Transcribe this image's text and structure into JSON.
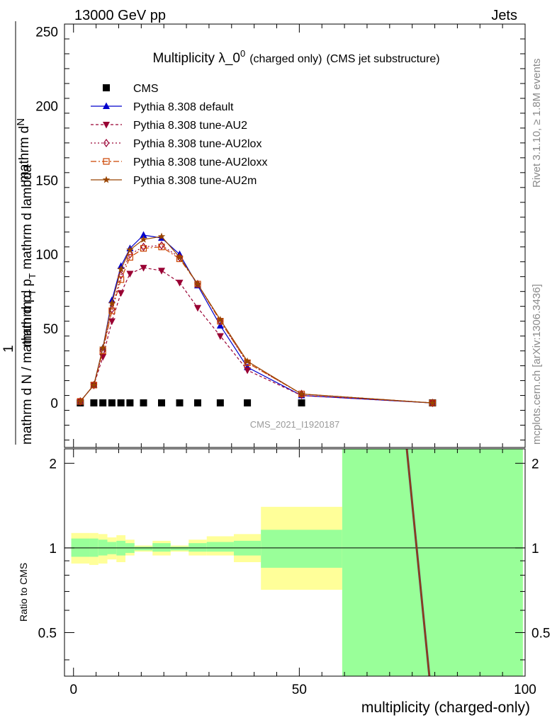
{
  "header": {
    "left": "13000 GeV pp",
    "right": "Jets"
  },
  "chart_title": {
    "main": "Multiplicity λ_0",
    "sup": "0",
    "paren1": "(charged only)",
    "paren2": "(CMS jet substructure)"
  },
  "side_text": {
    "rivet": "Rivet 3.1.10, ≥ 1.8M events",
    "mcplots": "mcplots.cern.ch [arXiv:1306.3436]"
  },
  "watermark": "CMS_2021_I1920187",
  "ylabel_numerator": "mathrm d",
  "ylabel_numerator_N": "N",
  "ylabel_denominator": "mathrm d p",
  "ylabel_denominator_T": "T",
  "ylabel_denominator_tail": " mathrm d lambda",
  "ylabel_prefix_1": "1",
  "ylabel_prefix_den": "mathrm d N / mathrm d p",
  "ylabel_prefix_T": "T",
  "chart_data": {
    "type": "line",
    "xlabel": "multiplicity (charged-only)",
    "xlim": [
      -2,
      100
    ],
    "main": {
      "ylim": [
        -30,
        255
      ],
      "yticks": [
        0,
        50,
        100,
        150,
        200,
        250
      ],
      "series": [
        {
          "name": "CMS",
          "marker": "square",
          "color": "#000000",
          "dash": "",
          "x": [
            1.5,
            4.5,
            6.5,
            8.5,
            10.5,
            12.5,
            15.5,
            19.5,
            23.5,
            27.5,
            32.5,
            38.5,
            50.5,
            79.5
          ],
          "y": [
            0,
            0,
            0,
            0,
            0,
            0,
            0,
            0,
            0,
            0,
            0,
            0,
            0,
            0
          ]
        },
        {
          "name": "Pythia 8.308 default",
          "marker": "triangle-up",
          "color": "#0000cc",
          "dash": "",
          "x": [
            1.5,
            4.5,
            6.5,
            8.5,
            10.5,
            12.5,
            15.5,
            19.5,
            23.5,
            27.5,
            32.5,
            38.5,
            50.5,
            79.5
          ],
          "y": [
            1,
            12,
            37,
            69,
            92,
            104,
            113,
            111,
            100,
            79,
            52,
            24,
            5,
            0
          ]
        },
        {
          "name": "Pythia 8.308 tune-AU2",
          "marker": "triangle-down",
          "color": "#990033",
          "dash": "4,3",
          "x": [
            1.5,
            4.5,
            6.5,
            8.5,
            10.5,
            12.5,
            15.5,
            19.5,
            23.5,
            27.5,
            32.5,
            38.5,
            50.5,
            79.5
          ],
          "y": [
            1,
            12,
            31,
            55,
            74,
            87,
            91,
            89,
            81,
            64,
            45,
            22,
            5,
            0
          ]
        },
        {
          "name": "Pythia 8.308 tune-AU2lox",
          "marker": "diamond-open",
          "color": "#990033",
          "dash": "2,3",
          "x": [
            1.5,
            4.5,
            6.5,
            8.5,
            10.5,
            12.5,
            15.5,
            19.5,
            23.5,
            27.5,
            32.5,
            38.5,
            50.5,
            79.5
          ],
          "y": [
            1,
            12,
            35,
            63,
            86,
            100,
            105,
            106,
            98,
            80,
            55,
            27,
            6,
            0
          ]
        },
        {
          "name": "Pythia 8.308 tune-AU2loxx",
          "marker": "square-open",
          "color": "#cc4400",
          "dash": "8,3,2,3",
          "x": [
            1.5,
            4.5,
            6.5,
            8.5,
            10.5,
            12.5,
            15.5,
            19.5,
            23.5,
            27.5,
            32.5,
            38.5,
            50.5,
            79.5
          ],
          "y": [
            1,
            12,
            35,
            62,
            83,
            98,
            104,
            105,
            97,
            80,
            55,
            27,
            6,
            0
          ]
        },
        {
          "name": "Pythia 8.308 tune-AU2m",
          "marker": "star",
          "color": "#994400",
          "dash": "",
          "x": [
            1.5,
            4.5,
            6.5,
            8.5,
            10.5,
            12.5,
            15.5,
            19.5,
            23.5,
            27.5,
            32.5,
            38.5,
            50.5,
            79.5
          ],
          "y": [
            1,
            12,
            37,
            67,
            90,
            103,
            110,
            112,
            98,
            80,
            56,
            28,
            6,
            0
          ]
        }
      ]
    },
    "ratio": {
      "ylabel": "Ratio to CMS",
      "ylim": [
        0.35,
        2.25
      ],
      "yticks": [
        0.5,
        1,
        2
      ],
      "bands": [
        {
          "x0": -0.5,
          "x1": 3.5,
          "y_lo": 0.88,
          "y_hi": 1.13,
          "g_lo": 0.93,
          "g_hi": 1.08
        },
        {
          "x0": 3.5,
          "x1": 5.5,
          "y_lo": 0.87,
          "y_hi": 1.13,
          "g_lo": 0.93,
          "g_hi": 1.08
        },
        {
          "x0": 5.5,
          "x1": 7.5,
          "y_lo": 0.88,
          "y_hi": 1.12,
          "g_lo": 0.94,
          "g_hi": 1.07
        },
        {
          "x0": 7.5,
          "x1": 9.5,
          "y_lo": 0.91,
          "y_hi": 1.09,
          "g_lo": 0.95,
          "g_hi": 1.05
        },
        {
          "x0": 9.5,
          "x1": 11.5,
          "y_lo": 0.89,
          "y_hi": 1.11,
          "g_lo": 0.94,
          "g_hi": 1.06
        },
        {
          "x0": 11.5,
          "x1": 13.5,
          "y_lo": 0.94,
          "y_hi": 1.07,
          "g_lo": 0.96,
          "g_hi": 1.04
        },
        {
          "x0": 13.5,
          "x1": 17.5,
          "y_lo": 0.97,
          "y_hi": 1.02,
          "g_lo": 0.98,
          "g_hi": 1.01
        },
        {
          "x0": 17.5,
          "x1": 21.5,
          "y_lo": 0.94,
          "y_hi": 1.06,
          "g_lo": 0.97,
          "g_hi": 1.04
        },
        {
          "x0": 21.5,
          "x1": 25.5,
          "y_lo": 0.97,
          "y_hi": 1.02,
          "g_lo": 0.98,
          "g_hi": 1.01
        },
        {
          "x0": 25.5,
          "x1": 29.5,
          "y_lo": 0.94,
          "y_hi": 1.07,
          "g_lo": 0.97,
          "g_hi": 1.04
        },
        {
          "x0": 29.5,
          "x1": 35.5,
          "y_lo": 0.94,
          "y_hi": 1.1,
          "g_lo": 0.97,
          "g_hi": 1.05
        },
        {
          "x0": 35.5,
          "x1": 41.5,
          "y_lo": 0.89,
          "y_hi": 1.12,
          "g_lo": 0.94,
          "g_hi": 1.06
        },
        {
          "x0": 41.5,
          "x1": 59.5,
          "y_lo": 0.71,
          "y_hi": 1.4,
          "g_lo": 0.85,
          "g_hi": 1.16
        },
        {
          "x0": 59.5,
          "x1": 99.5,
          "y_lo": 0.35,
          "y_hi": 2.25,
          "g_lo": 0.35,
          "g_hi": 2.25
        }
      ],
      "steep_line": {
        "x": [
          73.8,
          78.8
        ],
        "y": [
          2.25,
          0.35
        ],
        "color": "#994400"
      }
    },
    "xticks": [
      0,
      50,
      100
    ]
  }
}
